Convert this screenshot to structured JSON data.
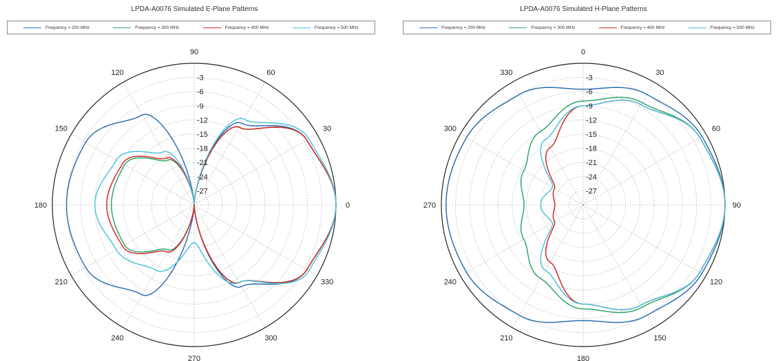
{
  "colors": {
    "s200": "#2f6fb0",
    "s300": "#2ea66a",
    "s400": "#d42a2a",
    "s500": "#4ec3de"
  },
  "chart_data": [
    {
      "type": "polar-line",
      "title": "LPDA-A0076 Simulated E-Plane Patterns",
      "angle_ticks": [
        "0",
        "30",
        "60",
        "90",
        "120",
        "150",
        "180",
        "210",
        "240",
        "270",
        "300",
        "330"
      ],
      "angle_direction": "counterclockwise",
      "zero_position": "right",
      "radial_ticks": [
        "-3",
        "-6",
        "-9",
        "-12",
        "-15",
        "-18",
        "-21",
        "-24",
        "-27"
      ],
      "rlim": [
        -30,
        0
      ],
      "legend": "top",
      "series": [
        {
          "name": "Frequency = 200 MHz",
          "angles": [
            0,
            30,
            60,
            90,
            120,
            150,
            180,
            210,
            240,
            270,
            300,
            330
          ],
          "values": [
            0,
            -2.5,
            -10,
            -30,
            -8,
            -3.5,
            -3,
            -3.5,
            -8,
            -30,
            -10,
            -2.5
          ]
        },
        {
          "name": "Frequency = 300 MHz",
          "angles": [
            0,
            30,
            60,
            90,
            120,
            150,
            180,
            210,
            240,
            270,
            300,
            330
          ],
          "values": [
            0,
            -2.5,
            -11,
            -30,
            -19,
            -13,
            -12.5,
            -13,
            -19,
            -30,
            -11,
            -2.5
          ]
        },
        {
          "name": "Frequency = 400 MHz",
          "angles": [
            0,
            30,
            60,
            90,
            120,
            150,
            180,
            210,
            240,
            270,
            300,
            330
          ],
          "values": [
            0,
            -2.5,
            -11,
            -30,
            -18.5,
            -12.5,
            -11.5,
            -12.5,
            -18.5,
            -30,
            -11,
            -2.5
          ]
        },
        {
          "name": "Frequency = 500 MHz",
          "angles": [
            0,
            30,
            60,
            90,
            120,
            150,
            180,
            210,
            240,
            270,
            300,
            330
          ],
          "values": [
            0,
            -2,
            -9,
            -30,
            -17,
            -11,
            -9,
            -11,
            -14,
            -22,
            -11,
            -2
          ]
        }
      ]
    },
    {
      "type": "polar-line",
      "title": "LPDA-A0076 Simulated H-Plane Patterns",
      "angle_ticks": [
        "0",
        "30",
        "60",
        "90",
        "120",
        "150",
        "180",
        "210",
        "240",
        "270",
        "300",
        "330"
      ],
      "angle_direction": "clockwise",
      "zero_position": "top",
      "radial_ticks": [
        "-3",
        "-6",
        "-9",
        "-12",
        "-15",
        "-18",
        "-21",
        "-24",
        "-27"
      ],
      "rlim": [
        -30,
        0
      ],
      "legend": "top",
      "series": [
        {
          "name": "Frequency = 200 MHz",
          "angles": [
            0,
            30,
            60,
            90,
            120,
            150,
            180,
            210,
            240,
            270,
            300,
            330
          ],
          "values": [
            -5.5,
            -3,
            -1,
            0,
            -1,
            -3,
            -5.5,
            -3,
            -1.5,
            -1,
            -1.5,
            -3
          ]
        },
        {
          "name": "Frequency = 300 MHz",
          "angles": [
            0,
            30,
            60,
            90,
            120,
            150,
            180,
            210,
            240,
            270,
            300,
            330
          ],
          "values": [
            -8,
            -5,
            -1.5,
            0,
            -1.5,
            -5,
            -8,
            -12,
            -15.5,
            -17.5,
            -15.5,
            -12
          ]
        },
        {
          "name": "Frequency = 400 MHz",
          "angles": [
            0,
            30,
            60,
            90,
            120,
            150,
            180,
            210,
            240,
            270,
            300,
            330
          ],
          "values": [
            -9,
            -5.5,
            -1.5,
            0,
            -1.5,
            -5.5,
            -9,
            -16,
            -23,
            -24,
            -23,
            -16
          ]
        },
        {
          "name": "Frequency = 500 MHz",
          "angles": [
            0,
            30,
            60,
            90,
            120,
            150,
            180,
            210,
            240,
            270,
            300,
            330
          ],
          "values": [
            -9,
            -5.5,
            -1.5,
            0,
            -1.5,
            -5.5,
            -9,
            -14,
            -22.5,
            -21,
            -22.5,
            -14
          ]
        }
      ]
    }
  ]
}
